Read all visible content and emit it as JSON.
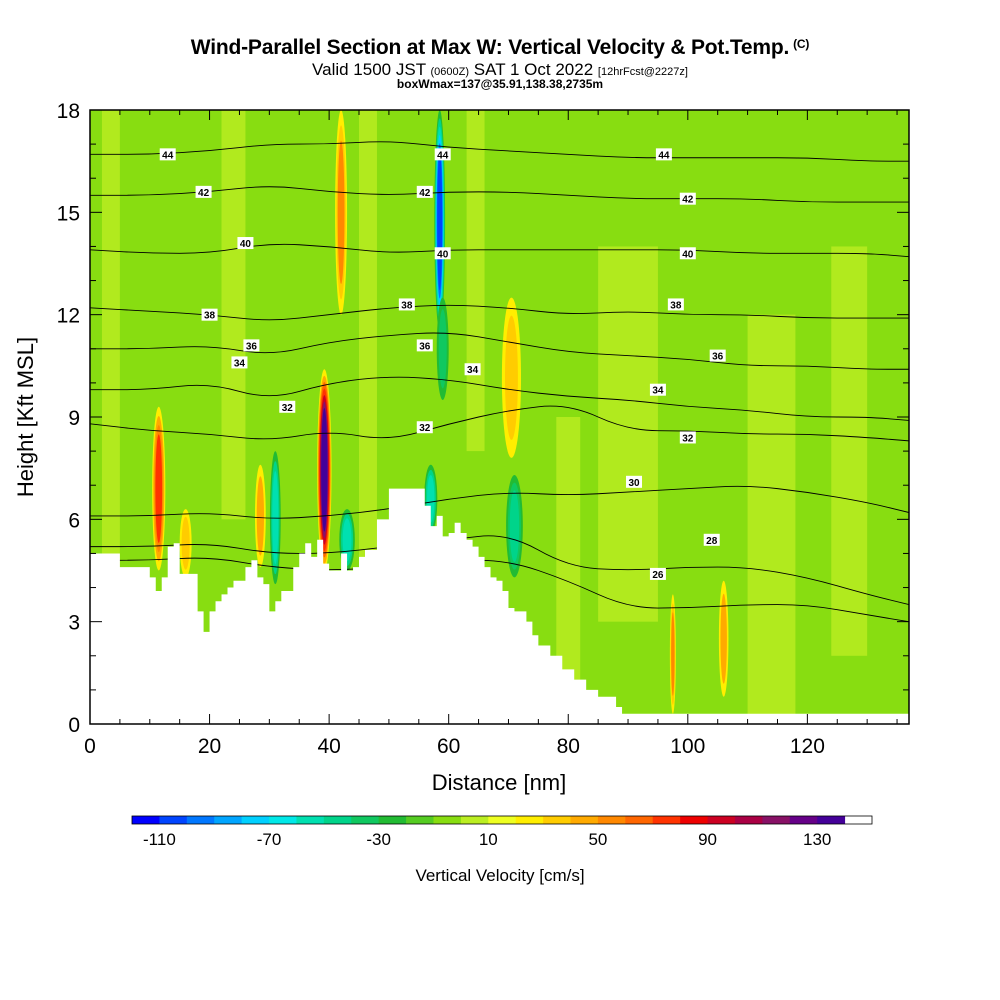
{
  "header": {
    "title": "Wind-Parallel Section at Max W: Vertical Velocity & Pot.Temp.",
    "title_mark": "(C)",
    "valid_prefix": "Valid 1500 JST",
    "valid_utc": "(0600Z)",
    "valid_date": "SAT 1 Oct 2022",
    "forecast_info": "[12hrFcst@2227z]",
    "box_info": "boxWmax=137@35.91,138.38,2735m"
  },
  "chart_data": {
    "type": "heatmap",
    "xlabel": "Distance [nm]",
    "ylabel": "Height [Kft MSL]",
    "xlim": [
      0,
      137
    ],
    "ylim": [
      0,
      18
    ],
    "x_ticks": [
      0,
      20,
      40,
      60,
      80,
      100,
      120
    ],
    "y_ticks": [
      0,
      3,
      6,
      9,
      12,
      15,
      18
    ],
    "colorbar": {
      "title": "Vertical Velocity [cm/s]",
      "min": -120,
      "max": 150,
      "step": 10,
      "tick_values": [
        -110,
        -70,
        -30,
        10,
        50,
        90,
        130
      ],
      "tick_labels": [
        "-110",
        "-70",
        "-30",
        "10",
        "50",
        "90",
        "130"
      ],
      "colors": [
        "#0000ff",
        "#0044ff",
        "#0077ff",
        "#00a5ff",
        "#00d0ff",
        "#00e8e8",
        "#00e0b0",
        "#00d48a",
        "#10c860",
        "#22bb33",
        "#55cc22",
        "#88dd11",
        "#bbee22",
        "#eeff22",
        "#ffee00",
        "#ffcc00",
        "#ffaa00",
        "#ff8800",
        "#ff6600",
        "#ff3300",
        "#ee0000",
        "#cc0022",
        "#aa0044",
        "#881166",
        "#660088",
        "#440099"
      ]
    },
    "velocity_features": [
      {
        "x": 11.5,
        "width": 2.2,
        "z_bottom": 4.5,
        "z_top": 9.3,
        "value": 70
      },
      {
        "x": 16,
        "width": 2,
        "z_bottom": 4.3,
        "z_top": 6.3,
        "value": 30
      },
      {
        "x": 28.5,
        "width": 1.8,
        "z_bottom": 4.6,
        "z_top": 7.6,
        "value": 40
      },
      {
        "x": 31,
        "width": 1.8,
        "z_bottom": 4.1,
        "z_top": 8.0,
        "value": -60
      },
      {
        "x": 39.2,
        "width": 2.4,
        "z_bottom": 4.5,
        "z_top": 10.4,
        "value": 130
      },
      {
        "x": 43,
        "width": 2.6,
        "z_bottom": 4.5,
        "z_top": 6.3,
        "value": -60
      },
      {
        "x": 58.5,
        "width": 1.8,
        "z_bottom": 11.5,
        "z_top": 18,
        "value": -110
      },
      {
        "x": 59,
        "width": 2.0,
        "z_bottom": 9.5,
        "z_top": 12.5,
        "value": -40
      },
      {
        "x": 57,
        "width": 2.2,
        "z_bottom": 5.6,
        "z_top": 7.6,
        "value": -60
      },
      {
        "x": 71,
        "width": 2.8,
        "z_bottom": 4.3,
        "z_top": 7.3,
        "value": -50
      },
      {
        "x": 70.5,
        "width": 3.2,
        "z_bottom": 7.8,
        "z_top": 12.5,
        "value": 30
      },
      {
        "x": 42,
        "width": 2.0,
        "z_bottom": 12,
        "z_top": 18,
        "value": 50
      },
      {
        "x": 97.5,
        "width": 1.0,
        "z_bottom": 0.3,
        "z_top": 3.8,
        "value": 50
      },
      {
        "x": 106,
        "width": 1.6,
        "z_bottom": 0.8,
        "z_top": 4.2,
        "value": 40
      }
    ],
    "terrain_profile": {
      "x": [
        0,
        5,
        10,
        11,
        12,
        13,
        14,
        15,
        17,
        18,
        19,
        20,
        21,
        22,
        23,
        24,
        26,
        27,
        28,
        29,
        30,
        31,
        32,
        34,
        35,
        36,
        37,
        38,
        39,
        40,
        42,
        43,
        44,
        45,
        46,
        48,
        50,
        51,
        55,
        56,
        57,
        58,
        59,
        60,
        61,
        62,
        63,
        64,
        65,
        66,
        67,
        68,
        69,
        70,
        71,
        72,
        73,
        74,
        75,
        77,
        79,
        81,
        83,
        85,
        88,
        89,
        100,
        137
      ],
      "z": [
        5.0,
        4.6,
        4.3,
        3.9,
        4.3,
        5.2,
        5.3,
        4.4,
        4.4,
        3.3,
        2.7,
        3.3,
        3.6,
        3.8,
        4.0,
        4.2,
        4.6,
        4.8,
        4.3,
        4.1,
        3.3,
        3.6,
        3.9,
        4.6,
        5.0,
        5.3,
        4.9,
        5.4,
        4.7,
        4.5,
        5.0,
        4.5,
        4.6,
        4.9,
        5.1,
        6.0,
        6.9,
        6.9,
        6.9,
        6.4,
        5.8,
        6.1,
        5.5,
        5.6,
        5.9,
        5.6,
        5.4,
        5.2,
        4.9,
        4.6,
        4.3,
        4.2,
        3.9,
        3.4,
        3.3,
        3.3,
        3.0,
        2.6,
        2.3,
        2.0,
        1.6,
        1.3,
        1.0,
        0.8,
        0.5,
        0.3,
        0.3,
        0.3
      ]
    },
    "contours": [
      {
        "theta": 26,
        "z": [
          4.8,
          4.8,
          4.9,
          4.6,
          4.5,
          4.6,
          4.8,
          4.8,
          4.2,
          3.4,
          3.4,
          3.5,
          3.5,
          3.2,
          3.0
        ]
      },
      {
        "theta": 28,
        "z": [
          5.2,
          5.2,
          5.3,
          5.0,
          5.0,
          5.2,
          5.4,
          5.6,
          4.6,
          4.5,
          4.6,
          4.6,
          4.3,
          3.8,
          3.5
        ]
      },
      {
        "theta": 30,
        "z": [
          6.1,
          6.1,
          6.2,
          6.0,
          6.1,
          6.3,
          6.6,
          6.8,
          6.7,
          6.8,
          6.9,
          7.0,
          6.8,
          6.5,
          6.2
        ]
      },
      {
        "theta": 32,
        "z": [
          8.8,
          8.6,
          8.5,
          8.3,
          8.6,
          8.3,
          8.8,
          9.2,
          9.4,
          8.6,
          8.6,
          8.5,
          8.5,
          8.4,
          8.3
        ]
      },
      {
        "theta": 34,
        "z": [
          9.8,
          9.8,
          10.0,
          9.5,
          10.0,
          10.2,
          10.1,
          9.8,
          9.6,
          9.5,
          9.3,
          9.2,
          9.0,
          9.0,
          8.9
        ]
      },
      {
        "theta": 36,
        "z": [
          11.0,
          11.0,
          11.1,
          10.8,
          11.2,
          11.4,
          11.5,
          11.2,
          10.9,
          10.8,
          10.7,
          10.5,
          10.5,
          10.4,
          10.4
        ]
      },
      {
        "theta": 38,
        "z": [
          12.2,
          12.1,
          12.0,
          11.8,
          12.0,
          12.2,
          12.3,
          12.2,
          12.0,
          12.1,
          12.0,
          12.0,
          11.9,
          11.9,
          11.9
        ]
      },
      {
        "theta": 40,
        "z": [
          13.9,
          13.8,
          13.8,
          14.1,
          14.0,
          13.8,
          13.9,
          13.9,
          13.9,
          13.9,
          13.9,
          13.8,
          13.8,
          13.8,
          13.7
        ]
      },
      {
        "theta": 42,
        "z": [
          15.5,
          15.5,
          15.6,
          15.8,
          15.6,
          15.5,
          15.6,
          15.6,
          15.5,
          15.4,
          15.4,
          15.4,
          15.3,
          15.3,
          15.3
        ]
      },
      {
        "theta": 44,
        "z": [
          16.7,
          16.7,
          16.8,
          17.0,
          17.0,
          17.1,
          16.9,
          16.8,
          16.7,
          16.6,
          16.6,
          16.6,
          16.6,
          16.5,
          16.5
        ]
      }
    ],
    "contour_x": [
      0,
      10,
      20,
      30,
      40,
      50,
      60,
      70,
      80,
      90,
      100,
      110,
      120,
      130,
      137
    ],
    "contour_labels": [
      {
        "text": "44",
        "x": 13,
        "z": 16.7
      },
      {
        "text": "44",
        "x": 59,
        "z": 16.7
      },
      {
        "text": "44",
        "x": 96,
        "z": 16.7
      },
      {
        "text": "42",
        "x": 19,
        "z": 15.6
      },
      {
        "text": "42",
        "x": 56,
        "z": 15.6
      },
      {
        "text": "42",
        "x": 100,
        "z": 15.4
      },
      {
        "text": "40",
        "x": 26,
        "z": 14.1
      },
      {
        "text": "40",
        "x": 59,
        "z": 13.8
      },
      {
        "text": "40",
        "x": 100,
        "z": 13.8
      },
      {
        "text": "38",
        "x": 20,
        "z": 12.0
      },
      {
        "text": "38",
        "x": 53,
        "z": 12.3
      },
      {
        "text": "38",
        "x": 98,
        "z": 12.3
      },
      {
        "text": "36",
        "x": 27,
        "z": 11.1
      },
      {
        "text": "36",
        "x": 56,
        "z": 11.1
      },
      {
        "text": "36",
        "x": 105,
        "z": 10.8
      },
      {
        "text": "34",
        "x": 25,
        "z": 10.6
      },
      {
        "text": "34",
        "x": 64,
        "z": 10.4
      },
      {
        "text": "34",
        "x": 95,
        "z": 9.8
      },
      {
        "text": "32",
        "x": 33,
        "z": 9.3
      },
      {
        "text": "32",
        "x": 56,
        "z": 8.7
      },
      {
        "text": "32",
        "x": 100,
        "z": 8.4
      },
      {
        "text": "30",
        "x": 91,
        "z": 7.1
      },
      {
        "text": "28",
        "x": 104,
        "z": 5.4
      },
      {
        "text": "26",
        "x": 95,
        "z": 4.4
      }
    ]
  }
}
